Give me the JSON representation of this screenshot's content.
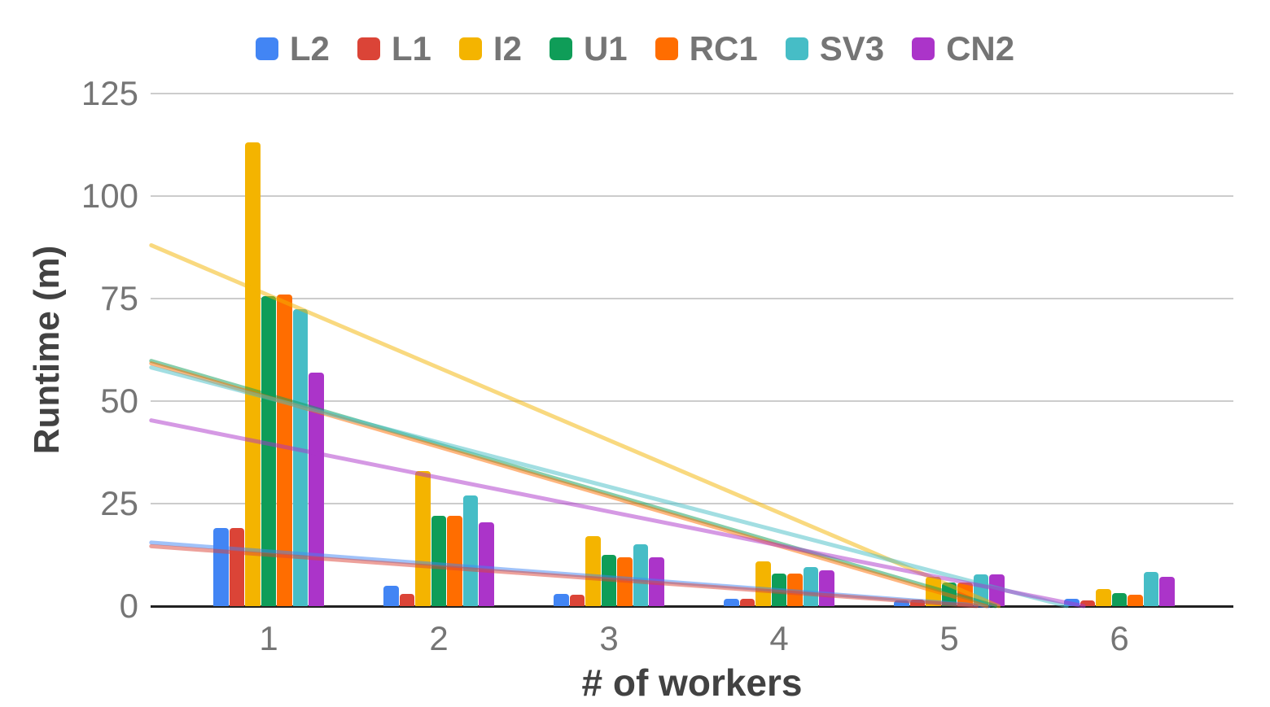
{
  "chart_data": {
    "type": "bar",
    "title": "",
    "xlabel": "# of workers",
    "ylabel": "Runtime (m)",
    "categories": [
      "1",
      "2",
      "3",
      "4",
      "5",
      "6"
    ],
    "yticks": [
      0,
      25,
      50,
      75,
      100,
      125
    ],
    "ylim": [
      0,
      125
    ],
    "grid": true,
    "legend_position": "top",
    "colors": {
      "gridline": "#cccccc",
      "axis_line": "#212121",
      "tick_text": "#757575",
      "axis_title_text": "#424242",
      "background": "#ffffff"
    },
    "series": [
      {
        "name": "L2",
        "color": "#4285F4",
        "values": [
          19,
          5,
          3,
          1.7,
          1.4,
          1.8
        ],
        "trend": {
          "start_cat": 0.31,
          "start_value": 15.5,
          "zero_cat": 5.23
        }
      },
      {
        "name": "L1",
        "color": "#DB4437",
        "values": [
          19,
          3,
          2.7,
          1.7,
          1.5,
          1.3
        ],
        "trend": {
          "start_cat": 0.31,
          "start_value": 14.6,
          "zero_cat": 5.16
        }
      },
      {
        "name": "I2",
        "color": "#F4B400",
        "values": [
          113,
          33,
          17,
          11,
          7.2,
          4.2
        ],
        "trend": {
          "start_cat": 0.31,
          "start_value": 88,
          "zero_cat": 5.29
        }
      },
      {
        "name": "U1",
        "color": "#0F9D58",
        "values": [
          75.5,
          22,
          12.5,
          8,
          5.7,
          3.2
        ],
        "trend": {
          "start_cat": 0.31,
          "start_value": 59.8,
          "zero_cat": 5.27
        }
      },
      {
        "name": "RC1",
        "color": "#FF6D00",
        "values": [
          76,
          22,
          12,
          8,
          5.8,
          2.8
        ],
        "trend": {
          "start_cat": 0.31,
          "start_value": 59.2,
          "zero_cat": 5.22
        }
      },
      {
        "name": "SV3",
        "color": "#46BDC6",
        "values": [
          72.5,
          27,
          15,
          9.5,
          7.7,
          8.3
        ],
        "trend": {
          "start_cat": 0.31,
          "start_value": 58.2,
          "zero_cat": 5.69
        }
      },
      {
        "name": "CN2",
        "color": "#AB34C9",
        "values": [
          57,
          20.5,
          12,
          8.7,
          7.8,
          7.2
        ],
        "trend": {
          "start_cat": 0.31,
          "start_value": 45.3,
          "zero_cat": 5.79
        }
      }
    ]
  }
}
